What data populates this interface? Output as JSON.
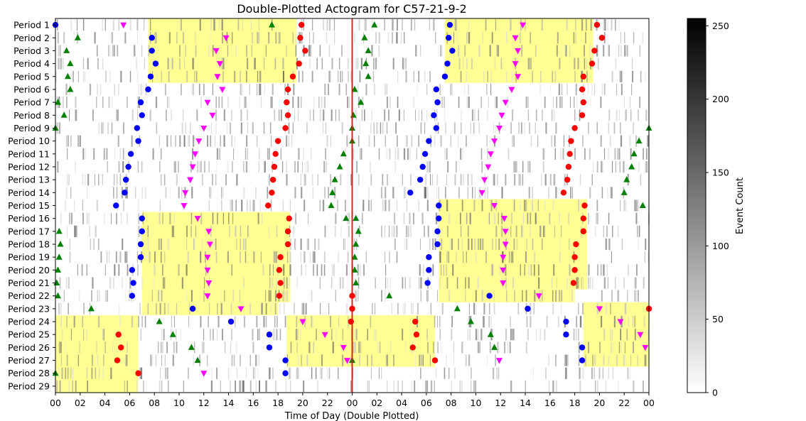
{
  "chart_data": {
    "type": "heatmap",
    "title": "Double-Plotted Actogram for C57-21-9-2",
    "xlabel": "Time of Day (Double Plotted)",
    "rows": [
      "Period 1",
      "Period 2",
      "Period 3",
      "Period 4",
      "Period 5",
      "Period 6",
      "Period 7",
      "Period 8",
      "Period 9",
      "Period 10",
      "Period 11",
      "Period 12",
      "Period 13",
      "Period 14",
      "Period 15",
      "Period 16",
      "Period 17",
      "Period 18",
      "Period 19",
      "Period 20",
      "Period 21",
      "Period 22",
      "Period 23",
      "Period 24",
      "Period 25",
      "Period 26",
      "Period 27",
      "Period 28",
      "Period 29"
    ],
    "x_ticks": [
      "00",
      "02",
      "04",
      "06",
      "08",
      "10",
      "12",
      "14",
      "16",
      "18",
      "20",
      "22",
      "00",
      "02",
      "04",
      "06",
      "08",
      "10",
      "12",
      "14",
      "16",
      "18",
      "20",
      "22",
      "00"
    ],
    "xlim": [
      0,
      48
    ],
    "colorbar": {
      "label": "Event Count",
      "ticks": [
        0,
        50,
        100,
        150,
        200,
        250
      ],
      "range": [
        0,
        255
      ]
    },
    "reference_line": {
      "x": 24,
      "color": "#ff0000"
    },
    "light_periods": [
      {
        "rows": [
          1,
          5
        ],
        "start": 7.5,
        "end": 19.5
      },
      {
        "rows": [
          16,
          22
        ],
        "start": 7.0,
        "end": 19.0
      },
      {
        "rows": [
          23,
          23
        ],
        "start": 7.0,
        "end": 18.0
      },
      {
        "rows": [
          24,
          29
        ],
        "start": 0.0,
        "end": 6.7
      },
      {
        "rows": [
          24,
          27
        ],
        "start": 18.7,
        "end": 30.7
      },
      {
        "rows": [
          1,
          5
        ],
        "start": 31.5,
        "end": 43.5
      },
      {
        "rows": [
          15,
          21
        ],
        "start": 31.0,
        "end": 43.0
      },
      {
        "rows": [
          22,
          22
        ],
        "start": 31.0,
        "end": 42.0
      },
      {
        "rows": [
          23,
          27
        ],
        "start": 42.7,
        "end": 48.0
      }
    ],
    "series": [
      {
        "marker": "circle",
        "color": "#0000ff",
        "points": [
          [
            1,
            0.0
          ],
          [
            2,
            7.8
          ],
          [
            3,
            7.8
          ],
          [
            4,
            8.1
          ],
          [
            5,
            7.7
          ],
          [
            6,
            7.5
          ],
          [
            7,
            6.9
          ],
          [
            8,
            7.0
          ],
          [
            9,
            6.6
          ],
          [
            10,
            6.7
          ],
          [
            11,
            6.1
          ],
          [
            12,
            5.9
          ],
          [
            13,
            5.7
          ],
          [
            14,
            5.6
          ],
          [
            15,
            4.9
          ],
          [
            16,
            7.0
          ],
          [
            17,
            7.0
          ],
          [
            18,
            6.9
          ],
          [
            19,
            6.9
          ],
          [
            20,
            6.2
          ],
          [
            21,
            6.3
          ],
          [
            22,
            6.2
          ],
          [
            23,
            11.1
          ],
          [
            24,
            14.2
          ],
          [
            25,
            17.3
          ],
          [
            26,
            17.3
          ],
          [
            27,
            18.6
          ],
          [
            28,
            18.6
          ],
          [
            1,
            31.9
          ],
          [
            2,
            31.8
          ],
          [
            3,
            32.1
          ],
          [
            4,
            31.7
          ],
          [
            5,
            31.5
          ],
          [
            6,
            30.8
          ],
          [
            7,
            30.9
          ],
          [
            8,
            30.6
          ],
          [
            9,
            30.8
          ],
          [
            10,
            30.2
          ],
          [
            11,
            29.9
          ],
          [
            12,
            29.7
          ],
          [
            13,
            29.5
          ],
          [
            14,
            28.7
          ],
          [
            15,
            31.0
          ],
          [
            16,
            31.0
          ],
          [
            17,
            30.9
          ],
          [
            18,
            30.9
          ],
          [
            19,
            30.2
          ],
          [
            20,
            30.2
          ],
          [
            21,
            30.1
          ],
          [
            22,
            35.1
          ],
          [
            23,
            38.2
          ],
          [
            24,
            41.3
          ],
          [
            25,
            41.3
          ],
          [
            26,
            42.6
          ],
          [
            27,
            42.6
          ]
        ]
      },
      {
        "marker": "circle",
        "color": "#ff0000",
        "points": [
          [
            1,
            19.9
          ],
          [
            2,
            19.8
          ],
          [
            3,
            20.2
          ],
          [
            4,
            19.7
          ],
          [
            5,
            19.2
          ],
          [
            6,
            18.8
          ],
          [
            7,
            18.7
          ],
          [
            8,
            18.8
          ],
          [
            9,
            18.6
          ],
          [
            10,
            18.0
          ],
          [
            11,
            17.8
          ],
          [
            12,
            17.7
          ],
          [
            13,
            17.6
          ],
          [
            14,
            17.5
          ],
          [
            15,
            17.2
          ],
          [
            16,
            18.9
          ],
          [
            17,
            18.8
          ],
          [
            18,
            18.8
          ],
          [
            19,
            18.2
          ],
          [
            20,
            18.1
          ],
          [
            21,
            18.2
          ],
          [
            22,
            18.1
          ],
          [
            23,
            24.0
          ],
          [
            24,
            23.9
          ],
          [
            25,
            5.1
          ],
          [
            26,
            5.3
          ],
          [
            27,
            5.0
          ],
          [
            28,
            6.7
          ],
          [
            1,
            43.8
          ],
          [
            2,
            44.2
          ],
          [
            3,
            43.6
          ],
          [
            4,
            43.4
          ],
          [
            5,
            42.7
          ],
          [
            6,
            42.6
          ],
          [
            7,
            42.7
          ],
          [
            8,
            42.6
          ],
          [
            9,
            42.0
          ],
          [
            10,
            41.7
          ],
          [
            11,
            41.6
          ],
          [
            12,
            41.5
          ],
          [
            13,
            41.4
          ],
          [
            14,
            41.1
          ],
          [
            15,
            42.8
          ],
          [
            16,
            42.7
          ],
          [
            17,
            42.7
          ],
          [
            18,
            42.1
          ],
          [
            19,
            42.0
          ],
          [
            20,
            42.0
          ],
          [
            21,
            41.9
          ],
          [
            22,
            24.0
          ],
          [
            23,
            48.0
          ],
          [
            24,
            29.1
          ],
          [
            25,
            29.2
          ],
          [
            26,
            28.9
          ],
          [
            27,
            30.7
          ]
        ]
      },
      {
        "marker": "triangle-up",
        "color": "#008000",
        "points": [
          [
            1,
            17.5
          ],
          [
            2,
            1.8
          ],
          [
            3,
            0.9
          ],
          [
            4,
            1.2
          ],
          [
            5,
            1.0
          ],
          [
            6,
            1.2
          ],
          [
            7,
            0.2
          ],
          [
            8,
            0.7
          ],
          [
            9,
            0.0
          ],
          [
            16,
            23.5
          ],
          [
            17,
            0.3
          ],
          [
            18,
            0.4
          ],
          [
            19,
            0.3
          ],
          [
            20,
            0.2
          ],
          [
            21,
            0.1
          ],
          [
            22,
            0.2
          ],
          [
            23,
            2.9
          ],
          [
            24,
            8.4
          ],
          [
            25,
            9.5
          ],
          [
            26,
            11.0
          ],
          [
            27,
            11.5
          ],
          [
            28,
            0.0
          ],
          [
            1,
            25.8
          ],
          [
            2,
            25.0
          ],
          [
            3,
            25.3
          ],
          [
            4,
            25.1
          ],
          [
            5,
            25.3
          ],
          [
            6,
            24.2
          ],
          [
            7,
            24.7
          ],
          [
            8,
            24.1
          ],
          [
            9,
            48.0
          ],
          [
            10,
            47.2
          ],
          [
            11,
            46.8
          ],
          [
            12,
            46.6
          ],
          [
            13,
            46.2
          ],
          [
            14,
            46.0
          ],
          [
            15,
            47.5
          ],
          [
            16,
            24.3
          ],
          [
            17,
            24.5
          ],
          [
            18,
            24.3
          ],
          [
            19,
            24.2
          ],
          [
            20,
            24.2
          ],
          [
            21,
            24.3
          ],
          [
            22,
            27.0
          ],
          [
            23,
            32.5
          ],
          [
            24,
            33.6
          ],
          [
            25,
            35.2
          ],
          [
            26,
            35.5
          ],
          [
            27,
            24.0
          ],
          [
            9,
            24.0
          ],
          [
            10,
            24.0
          ],
          [
            11,
            23.3
          ],
          [
            12,
            23.0
          ],
          [
            13,
            22.6
          ],
          [
            14,
            22.4
          ],
          [
            15,
            22.3
          ]
        ]
      },
      {
        "marker": "triangle-down",
        "color": "#ff00ff",
        "points": [
          [
            1,
            5.5
          ],
          [
            2,
            13.8
          ],
          [
            3,
            13.0
          ],
          [
            4,
            13.3
          ],
          [
            5,
            13.1
          ],
          [
            6,
            13.5
          ],
          [
            7,
            12.3
          ],
          [
            8,
            12.7
          ],
          [
            9,
            12.0
          ],
          [
            10,
            11.6
          ],
          [
            11,
            11.3
          ],
          [
            12,
            11.1
          ],
          [
            13,
            10.9
          ],
          [
            14,
            10.5
          ],
          [
            15,
            10.4
          ],
          [
            16,
            11.5
          ],
          [
            17,
            12.4
          ],
          [
            18,
            12.5
          ],
          [
            19,
            12.3
          ],
          [
            20,
            12.3
          ],
          [
            21,
            12.4
          ],
          [
            22,
            12.3
          ],
          [
            23,
            15.0
          ],
          [
            24,
            20.0
          ],
          [
            25,
            21.8
          ],
          [
            26,
            23.3
          ],
          [
            27,
            23.6
          ],
          [
            28,
            12.0
          ],
          [
            1,
            37.8
          ],
          [
            2,
            37.2
          ],
          [
            3,
            37.4
          ],
          [
            4,
            37.2
          ],
          [
            5,
            37.4
          ],
          [
            6,
            36.9
          ],
          [
            7,
            36.4
          ],
          [
            8,
            36.1
          ],
          [
            9,
            35.9
          ],
          [
            10,
            35.5
          ],
          [
            11,
            35.2
          ],
          [
            12,
            35.0
          ],
          [
            13,
            34.7
          ],
          [
            14,
            34.5
          ],
          [
            15,
            35.5
          ],
          [
            16,
            36.3
          ],
          [
            17,
            36.4
          ],
          [
            18,
            36.4
          ],
          [
            19,
            36.2
          ],
          [
            20,
            36.2
          ],
          [
            21,
            36.2
          ],
          [
            22,
            39.1
          ],
          [
            23,
            44.0
          ],
          [
            24,
            45.7
          ],
          [
            25,
            47.3
          ],
          [
            26,
            47.7
          ],
          [
            27,
            35.9
          ]
        ]
      }
    ]
  }
}
